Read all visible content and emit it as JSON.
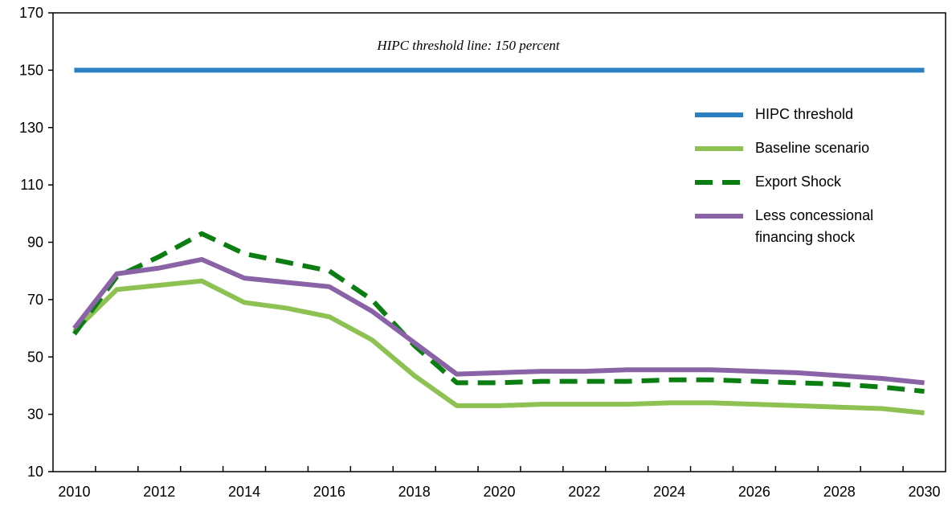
{
  "chart_data": {
    "type": "line",
    "annotation": "HIPC threshold line: 150 percent",
    "categories": [
      "2010",
      null,
      "2012",
      null,
      "2014",
      null,
      "2016",
      null,
      "2018",
      null,
      "2020",
      null,
      "2022",
      null,
      "2024",
      null,
      "2026",
      null,
      "2028",
      null,
      "2030"
    ],
    "ylim": [
      10,
      170
    ],
    "yticks": [
      10,
      30,
      50,
      70,
      90,
      110,
      130,
      150,
      170
    ],
    "legend": "upper right",
    "series": [
      {
        "name": "HIPC threshold",
        "color": "#2b80c2",
        "dash": false,
        "values": [
          150,
          150,
          150,
          150,
          150,
          150,
          150,
          150,
          150,
          150,
          150,
          150,
          150,
          150,
          150,
          150,
          150,
          150,
          150,
          150,
          150
        ]
      },
      {
        "name": "Baseline scenario",
        "color": "#8dc152",
        "dash": false,
        "values": [
          59,
          73.5,
          75,
          76.5,
          69,
          67,
          64,
          56,
          43.5,
          33,
          33,
          33.5,
          33.5,
          33.5,
          34,
          34,
          33.5,
          33,
          32.5,
          32,
          30.5
        ]
      },
      {
        "name": "Export Shock",
        "color": "#0b7e12",
        "dash": true,
        "values": [
          58,
          78,
          85,
          93,
          86,
          83,
          80,
          70,
          54,
          41,
          41,
          41.5,
          41.5,
          41.5,
          42,
          42,
          41.5,
          41,
          40.5,
          39.5,
          38
        ]
      },
      {
        "name": "Less concessional financing shock",
        "color": "#8a62a6",
        "dash": false,
        "values": [
          60,
          79,
          81,
          84,
          77.5,
          76,
          74.5,
          66,
          55,
          44,
          44.5,
          45,
          45,
          45.5,
          45.5,
          45.5,
          45,
          44.5,
          43.5,
          42.5,
          41
        ]
      }
    ]
  }
}
